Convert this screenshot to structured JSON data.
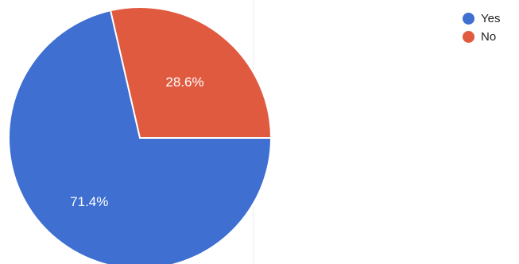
{
  "chart_data": {
    "type": "pie",
    "title": "",
    "slices": [
      {
        "label": "Yes",
        "value": 71.4,
        "value_label": "71.4%",
        "color": "#3e6fd1"
      },
      {
        "label": "No",
        "value": 28.6,
        "value_label": "28.6%",
        "color": "#e05a3f"
      }
    ],
    "legend_position": "top-right"
  }
}
